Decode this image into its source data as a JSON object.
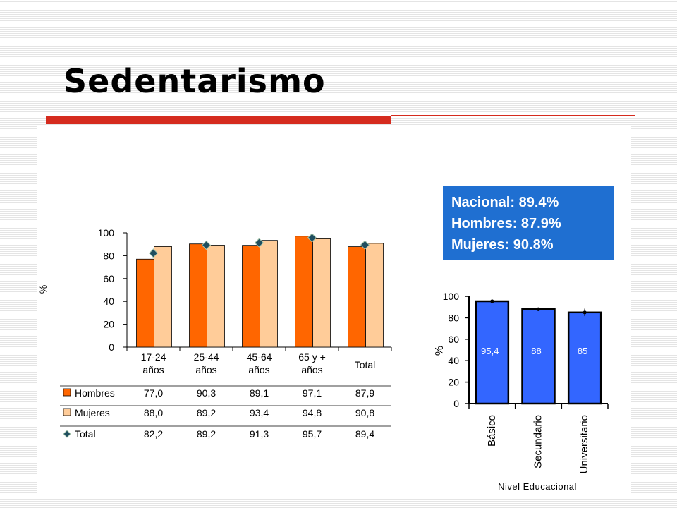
{
  "slide": {
    "title": "Sedentarismo"
  },
  "summary_box": {
    "lines": [
      "Nacional: 89.4%",
      "Hombres: 87.9%",
      "Mujeres: 90.8%"
    ],
    "background": "#1f6fd1"
  },
  "colors": {
    "accent": "#d52b1e",
    "hombres": "#ff6600",
    "mujeres": "#ffcc99",
    "total": "#1f4e5f",
    "educ_bar": "#3366ff"
  },
  "chart_data": [
    {
      "type": "bar",
      "ylabel": "%",
      "ylim": [
        0,
        100
      ],
      "yticks": [
        "0",
        "20",
        "40",
        "60",
        "80",
        "100"
      ],
      "categories": [
        [
          "17-24",
          "años"
        ],
        [
          "25-44",
          "años"
        ],
        [
          "45-64",
          "años"
        ],
        [
          "65 y +",
          "años"
        ],
        [
          "Total"
        ]
      ],
      "series": [
        {
          "name": "Hombres",
          "marker": "bar",
          "values": [
            77.0,
            90.3,
            89.1,
            97.1,
            87.9
          ],
          "labels": [
            "77,0",
            "90,3",
            "89,1",
            "97,1",
            "87,9"
          ]
        },
        {
          "name": "Mujeres",
          "marker": "bar",
          "values": [
            88.0,
            89.2,
            93.4,
            94.8,
            90.8
          ],
          "labels": [
            "88,0",
            "89,2",
            "93,4",
            "94,8",
            "90,8"
          ]
        },
        {
          "name": "Total",
          "marker": "diamond",
          "values": [
            82.2,
            89.2,
            91.3,
            95.7,
            89.4
          ],
          "labels": [
            "82,2",
            "89,2",
            "91,3",
            "95,7",
            "89,4"
          ]
        }
      ],
      "grid": false,
      "legend": "data table below chart"
    },
    {
      "type": "bar",
      "ylabel": "%",
      "xlabel": "Nivel Educacional",
      "ylim": [
        0,
        100
      ],
      "yticks": [
        "0",
        "20",
        "40",
        "60",
        "80",
        "100"
      ],
      "categories": [
        "Básico",
        "Secundario",
        "Universitario"
      ],
      "values": [
        95.4,
        88,
        85
      ],
      "value_labels": [
        "95,4",
        "88",
        "85"
      ],
      "error_bars": [
        1.5,
        1.5,
        3.5
      ],
      "grid": false
    }
  ]
}
